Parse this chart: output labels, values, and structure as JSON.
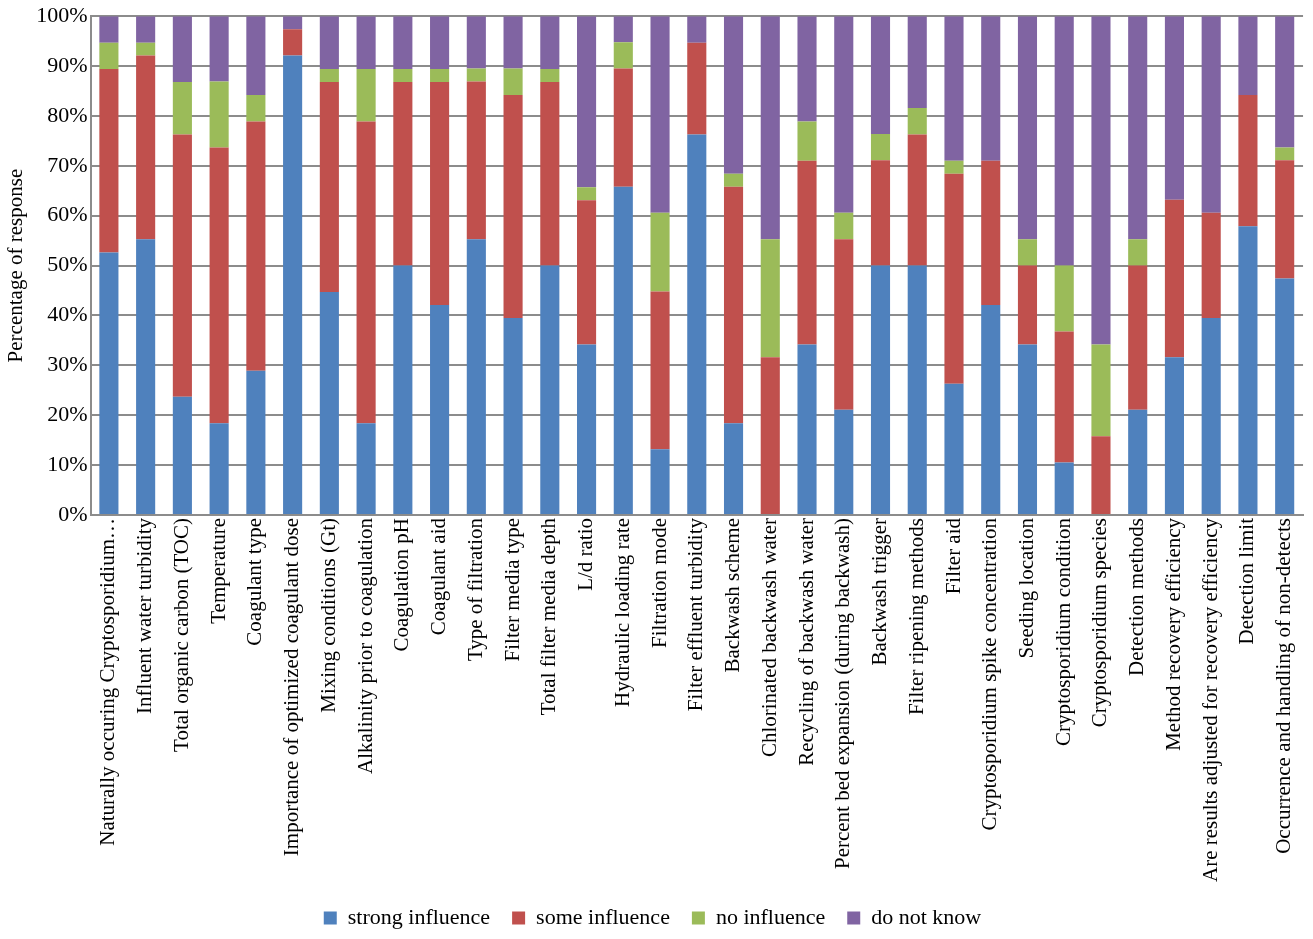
{
  "chart_data": {
    "type": "bar",
    "stacked": true,
    "ylabel": "Percentage of response",
    "categories": [
      "Naturally occuring Cryptosporidium…",
      "Influent water turbidity",
      "Total organic carbon (TOC)",
      "Temperature",
      "Coagulant type",
      "Importance of optimized coagulant dose",
      "Mixing conditions (Gt)",
      "Alkalinity prior to coagulation",
      "Coagulation pH",
      "Coagulant aid",
      "Type of filtration",
      "Filter media type",
      "Total filter media depth",
      "L/d ratio",
      "Hydraulic loading rate",
      "Filtration mode",
      "Filter effluent turbidity",
      "Backwash scheme",
      "Chlorinated backwash water",
      "Recycling of backwash water",
      "Percent bed expansion (during backwash)",
      "Backwash trigger",
      "Filter ripening methods",
      "Filter aid",
      "Cryptosporidium spike concentration",
      "Seeding location",
      "Cryptosporidium condition",
      "Cryptosporidium species",
      "Detection methods",
      "Method recovery efficiency",
      "Are results adjusted for recovery efficiency",
      "Detection limit",
      "Occurrence and handling of non-detects"
    ],
    "series": [
      {
        "name": "strong influence",
        "color": "#4f81bd",
        "values": [
          52.6,
          55.3,
          23.7,
          18.4,
          28.9,
          92.1,
          44.7,
          18.4,
          50,
          42.1,
          55.3,
          39.5,
          50,
          34.2,
          65.8,
          13.2,
          76.3,
          18.4,
          0,
          34.2,
          21.1,
          50,
          50,
          26.3,
          42.1,
          34.2,
          10.5,
          0,
          21.1,
          31.6,
          39.5,
          57.9,
          47.4
        ]
      },
      {
        "name": "some influence",
        "color": "#c0504d",
        "values": [
          36.8,
          36.8,
          52.6,
          55.3,
          50,
          5.3,
          42.1,
          60.5,
          36.8,
          44.7,
          31.6,
          44.7,
          36.8,
          28.9,
          23.7,
          31.6,
          18.4,
          47.4,
          31.6,
          36.8,
          34.2,
          21.1,
          26.3,
          42.1,
          28.9,
          15.8,
          26.3,
          15.8,
          28.9,
          31.6,
          21.1,
          26.3,
          23.7
        ]
      },
      {
        "name": "no influence",
        "color": "#9bbb59",
        "values": [
          5.3,
          2.6,
          10.5,
          13.2,
          5.3,
          0,
          2.6,
          10.5,
          2.6,
          2.6,
          2.6,
          5.3,
          2.6,
          2.6,
          5.3,
          15.8,
          0,
          2.6,
          23.7,
          7.9,
          5.3,
          5.3,
          5.3,
          2.6,
          0,
          5.3,
          13.2,
          18.4,
          5.3,
          0,
          0,
          0,
          2.6
        ]
      },
      {
        "name": "do not know",
        "color": "#8064a2",
        "values": [
          5.3,
          5.3,
          13.2,
          13.1,
          15.8,
          2.6,
          10.6,
          10.6,
          10.6,
          10.6,
          10.5,
          10.5,
          10.6,
          34.3,
          5.2,
          39.4,
          5.3,
          31.6,
          44.7,
          21.1,
          39.4,
          23.6,
          18.4,
          29,
          29,
          44.7,
          50,
          65.8,
          44.7,
          36.8,
          39.4,
          15.8,
          26.3
        ]
      }
    ],
    "ylim": [
      0,
      100
    ],
    "yticks": [
      {
        "value": 0,
        "label": "0%"
      },
      {
        "value": 10,
        "label": "10%"
      },
      {
        "value": 20,
        "label": "20%"
      },
      {
        "value": 30,
        "label": "30%"
      },
      {
        "value": 40,
        "label": "40%"
      },
      {
        "value": 50,
        "label": "50%"
      },
      {
        "value": 60,
        "label": "60%"
      },
      {
        "value": 70,
        "label": "70%"
      },
      {
        "value": 80,
        "label": "80%"
      },
      {
        "value": 90,
        "label": "90%"
      },
      {
        "value": 100,
        "label": "100%"
      }
    ],
    "grid": "y",
    "legend": "bottom"
  }
}
